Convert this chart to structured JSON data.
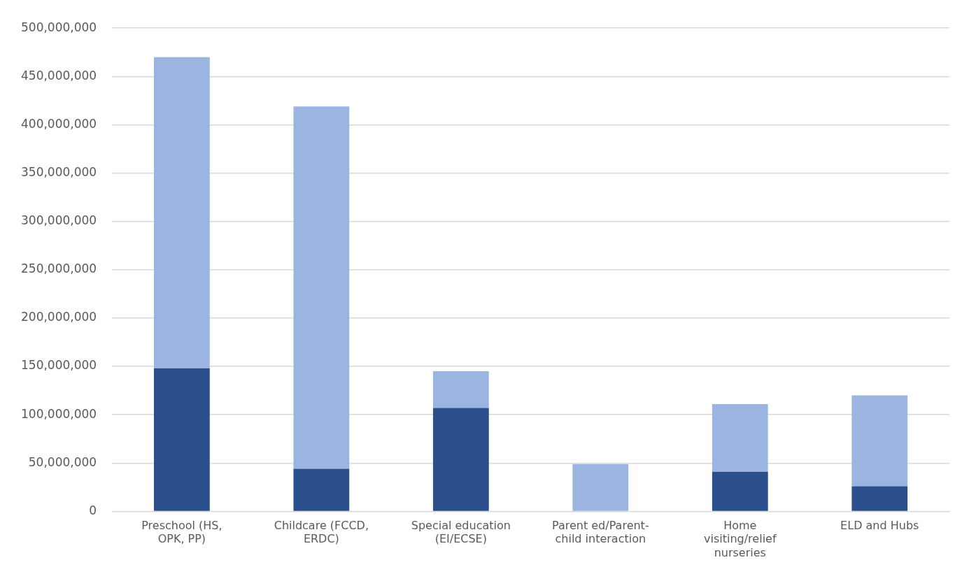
{
  "chart_data": {
    "type": "bar",
    "stacked": true,
    "categories": [
      "Preschool (HS, OPK, PP)",
      "Childcare (FCCD, ERDC)",
      "Special education (EI/ECSE)",
      "Parent ed/Parent-child interaction",
      "Home visiting/relief nurseries",
      "ELD and Hubs"
    ],
    "series": [
      {
        "color": "#2b4f8a",
        "values": [
          148000000,
          44000000,
          107000000,
          0,
          41000000,
          26000000
        ]
      },
      {
        "color": "#9cb4e0",
        "values": [
          322000000,
          375000000,
          38000000,
          49000000,
          70000000,
          94000000
        ]
      }
    ],
    "ylim": [
      0,
      500000000
    ],
    "yticks": [
      0,
      {
        "value": 50000000,
        "label": "50,000,000"
      },
      {
        "value": 100000000,
        "label": "100,000,000"
      },
      {
        "value": 150000000,
        "label": "150,000,000"
      },
      {
        "value": 200000000,
        "label": "200,000,000"
      },
      {
        "value": 250000000,
        "label": "250,000,000"
      },
      {
        "value": 300000000,
        "label": "300,000,000"
      },
      {
        "value": 350000000,
        "label": "350,000,000"
      },
      {
        "value": 400000000,
        "label": "400,000,000"
      },
      {
        "value": 450000000,
        "label": "450,000,000"
      },
      {
        "value": 500000000,
        "label": "500,000,000"
      }
    ],
    "grid": "y",
    "legend": false
  }
}
